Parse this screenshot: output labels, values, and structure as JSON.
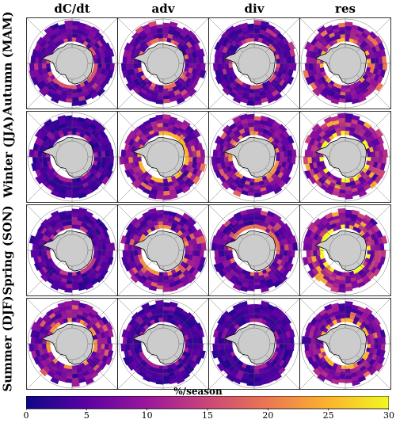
{
  "chart_data": {
    "type": "heatmap",
    "projection": "south-polar-stereographic",
    "columns": [
      "dC/dt",
      "adv",
      "div",
      "res"
    ],
    "rows": [
      "Autumn (MAM)",
      "Winter (JJA)",
      "Spring (SON)",
      "Summer (DJF)"
    ],
    "colorbar": {
      "label": "%/season",
      "colormap": "plasma",
      "range": [
        0,
        30
      ],
      "ticks": [
        "0",
        "5",
        "10",
        "15",
        "20",
        "25",
        "30"
      ],
      "tick_values": [
        0,
        5,
        10,
        15,
        20,
        25,
        30
      ],
      "colors": [
        "#0d0887",
        "#5b02a3",
        "#9a179b",
        "#cb4678",
        "#eb7852",
        "#fbb32f",
        "#f0f921"
      ]
    },
    "panels": [
      {
        "row": "Autumn (MAM)",
        "col": "dC/dt",
        "mean_rate": 6
      },
      {
        "row": "Autumn (MAM)",
        "col": "adv",
        "mean_rate": 7
      },
      {
        "row": "Autumn (MAM)",
        "col": "div",
        "mean_rate": 6
      },
      {
        "row": "Autumn (MAM)",
        "col": "res",
        "mean_rate": 9
      },
      {
        "row": "Winter (JJA)",
        "col": "dC/dt",
        "mean_rate": 4
      },
      {
        "row": "Winter (JJA)",
        "col": "adv",
        "mean_rate": 9
      },
      {
        "row": "Winter (JJA)",
        "col": "div",
        "mean_rate": 8
      },
      {
        "row": "Winter (JJA)",
        "col": "res",
        "mean_rate": 11
      },
      {
        "row": "Spring (SON)",
        "col": "dC/dt",
        "mean_rate": 5
      },
      {
        "row": "Spring (SON)",
        "col": "adv",
        "mean_rate": 8
      },
      {
        "row": "Spring (SON)",
        "col": "div",
        "mean_rate": 7
      },
      {
        "row": "Spring (SON)",
        "col": "res",
        "mean_rate": 11
      },
      {
        "row": "Summer (DJF)",
        "col": "dC/dt",
        "mean_rate": 8
      },
      {
        "row": "Summer (DJF)",
        "col": "adv",
        "mean_rate": 4
      },
      {
        "row": "Summer (DJF)",
        "col": "div",
        "mean_rate": 4
      },
      {
        "row": "Summer (DJF)",
        "col": "res",
        "mean_rate": 9
      }
    ]
  }
}
